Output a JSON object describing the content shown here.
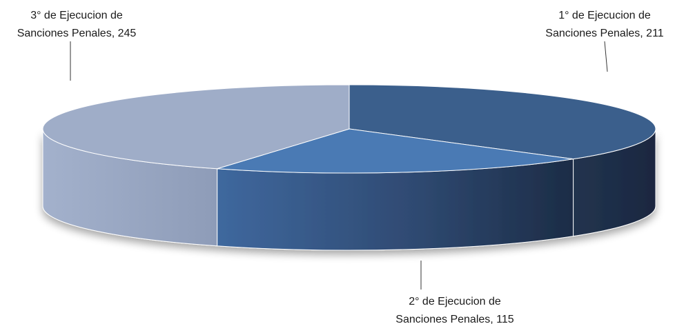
{
  "chart_data": {
    "type": "pie",
    "categories": [
      "1° de Ejecucion de Sanciones Penales",
      "2° de Ejecucion de Sanciones Penales",
      "3° de Ejecucion de Sanciones Penales"
    ],
    "values": [
      211,
      115,
      245
    ],
    "colors": [
      "#3b5f8c",
      "#4a7ab4",
      "#9fadc8"
    ],
    "title": "",
    "legend": "none",
    "style": "3d-exploded-none",
    "labels": [
      {
        "line1": "1° de Ejecucion de",
        "line2": "Sanciones Penales, 211"
      },
      {
        "line1": "2° de Ejecucion de",
        "line2": "Sanciones Penales, 115"
      },
      {
        "line1": "3° de Ejecucion de",
        "line2": "Sanciones Penales, 245"
      }
    ]
  }
}
